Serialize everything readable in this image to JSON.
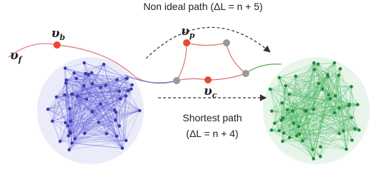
{
  "title": "Non ideal path (ΔL = n + 5)",
  "shortest": {
    "line1": "Shortest path",
    "line2": "(ΔL = n + 4)"
  },
  "nodes": [
    {
      "symbol": "υ",
      "subscript": "f"
    },
    {
      "symbol": "υ",
      "subscript": "b"
    },
    {
      "symbol": "υ",
      "subscript": "p"
    },
    {
      "symbol": "υ",
      "subscript": "c"
    }
  ]
}
